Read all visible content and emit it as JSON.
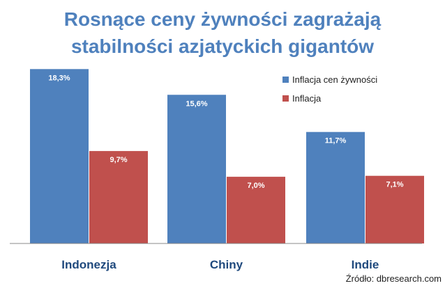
{
  "chart_data": {
    "type": "bar",
    "title_lines": [
      "Rosnące ceny żywności zagrażają",
      "stabilności azjatyckich gigantów"
    ],
    "categories": [
      "Indonezja",
      "Chiny",
      "Indie"
    ],
    "series": [
      {
        "name": "Inflacja cen żywności",
        "color": "#4f81bd",
        "values": [
          18.3,
          15.6,
          11.7
        ],
        "labels": [
          "18,3%",
          "15,6%",
          "11,7%"
        ]
      },
      {
        "name": "Inflacja",
        "color": "#c0504d",
        "values": [
          9.7,
          7.0,
          7.1
        ],
        "labels": [
          "9,7%",
          "7,0%",
          "7,1%"
        ]
      }
    ],
    "ylim": [
      0,
      20
    ],
    "grid": false,
    "legend_position": "top-right",
    "source": "Źródło: dbresearch.com"
  }
}
